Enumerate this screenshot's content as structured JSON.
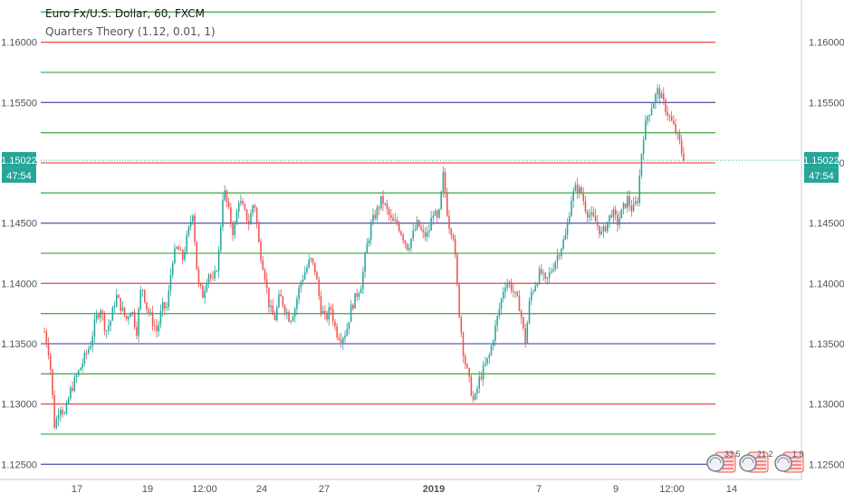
{
  "header": {
    "symbol_line": "Euro Fx/U.S. Dollar, 60, FXCM",
    "indicator_line": "Quarters Theory (1.12, 0.01, 1)"
  },
  "price_badge": {
    "value": "1.15022",
    "countdown": "47:54",
    "color": "#26a69a"
  },
  "colors": {
    "up": "#26a69a",
    "down": "#ef5350",
    "level_major": "#ef5350",
    "level_half": "#5b5fb0",
    "level_quarter": "#4caf50",
    "axis_text": "#4c525e"
  },
  "event_flags": [
    "33.5",
    "21.2",
    "1.9"
  ],
  "chart_data": {
    "type": "candlestick",
    "title": "Euro Fx/U.S. Dollar, 60, FXCM",
    "subtitle": "Quarters Theory (1.12, 0.01, 1)",
    "xlabel": "",
    "ylabel": "",
    "ylim": [
      1.1245,
      1.1635
    ],
    "y_ticks": [
      "1.16000",
      "1.15500",
      "1.15000",
      "1.14500",
      "1.14000",
      "1.13500",
      "1.13000",
      "1.12500"
    ],
    "x_ticks": [
      "17",
      "19",
      "12:00",
      "24",
      "27",
      "2019",
      "7",
      "9",
      "12:00",
      "14"
    ],
    "last_price": 1.15022,
    "grid": false,
    "quarter_levels": [
      {
        "price": 1.1625,
        "kind": "quarter"
      },
      {
        "price": 1.16,
        "kind": "major"
      },
      {
        "price": 1.1575,
        "kind": "quarter"
      },
      {
        "price": 1.155,
        "kind": "half"
      },
      {
        "price": 1.1525,
        "kind": "quarter"
      },
      {
        "price": 1.15,
        "kind": "major"
      },
      {
        "price": 1.1475,
        "kind": "quarter"
      },
      {
        "price": 1.145,
        "kind": "half"
      },
      {
        "price": 1.1425,
        "kind": "quarter"
      },
      {
        "price": 1.14,
        "kind": "major"
      },
      {
        "price": 1.1375,
        "kind": "quarter"
      },
      {
        "price": 1.135,
        "kind": "half"
      },
      {
        "price": 1.1325,
        "kind": "quarter"
      },
      {
        "price": 1.13,
        "kind": "major"
      },
      {
        "price": 1.1275,
        "kind": "quarter"
      },
      {
        "price": 1.125,
        "kind": "half"
      }
    ],
    "close_path": [
      1.136,
      1.134,
      1.128,
      1.13,
      1.129,
      1.131,
      1.132,
      1.133,
      1.134,
      1.135,
      1.137,
      1.138,
      1.136,
      1.137,
      1.139,
      1.138,
      1.137,
      1.138,
      1.136,
      1.14,
      1.138,
      1.137,
      1.136,
      1.138,
      1.138,
      1.142,
      1.143,
      1.142,
      1.144,
      1.146,
      1.14,
      1.139,
      1.141,
      1.14,
      1.142,
      1.148,
      1.146,
      1.144,
      1.147,
      1.146,
      1.145,
      1.147,
      1.143,
      1.141,
      1.138,
      1.137,
      1.139,
      1.138,
      1.137,
      1.138,
      1.14,
      1.141,
      1.142,
      1.141,
      1.138,
      1.137,
      1.138,
      1.136,
      1.1355,
      1.136,
      1.138,
      1.139,
      1.14,
      1.143,
      1.145,
      1.146,
      1.147,
      1.146,
      1.145,
      1.145,
      1.144,
      1.143,
      1.144,
      1.145,
      1.144,
      1.144,
      1.146,
      1.145,
      1.149,
      1.145,
      1.144,
      1.138,
      1.134,
      1.132,
      1.13,
      1.132,
      1.133,
      1.134,
      1.136,
      1.138,
      1.14,
      1.14,
      1.139,
      1.138,
      1.135,
      1.139,
      1.14,
      1.141,
      1.14,
      1.141,
      1.142,
      1.143,
      1.144,
      1.147,
      1.148,
      1.1475,
      1.146,
      1.1455,
      1.145,
      1.144,
      1.145,
      1.146,
      1.145,
      1.146,
      1.147,
      1.146,
      1.147,
      1.152,
      1.154,
      1.155,
      1.156,
      1.155,
      1.154,
      1.153,
      1.152,
      1.1502
    ]
  }
}
